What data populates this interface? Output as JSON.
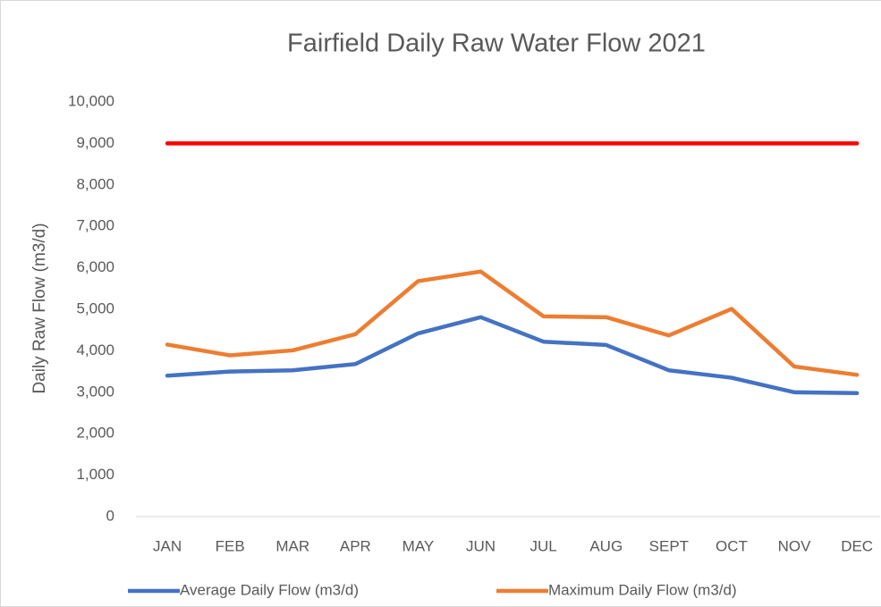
{
  "chart_data": {
    "type": "line",
    "title": "Fairfield Daily Raw Water Flow 2021",
    "y_label": "Daily Raw Flow (m3/d)",
    "categories": [
      "JAN",
      "FEB",
      "MAR",
      "APR",
      "MAY",
      "JUN",
      "JUL",
      "AUG",
      "SEPT",
      "OCT",
      "NOV",
      "DEC"
    ],
    "series": [
      {
        "name": "Average Daily Flow (m3/d)",
        "color": "#4472c4",
        "values": [
          3400,
          3500,
          3530,
          3680,
          4420,
          4810,
          4220,
          4140,
          3530,
          3350,
          3000,
          2980
        ]
      },
      {
        "name": "Maximum Daily Flow (m3/d)",
        "color": "#ed7d31",
        "values": [
          4150,
          3890,
          4010,
          4400,
          5680,
          5910,
          4830,
          4810,
          4370,
          5010,
          3620,
          3420
        ]
      },
      {
        "color": "#ff0000",
        "values": [
          9000,
          9000,
          9000,
          9000,
          9000,
          9000,
          9000,
          9000,
          9000,
          9000,
          9000,
          9000
        ]
      }
    ],
    "ylim": [
      0,
      10000
    ],
    "yticks": [
      0,
      {
        "value": 1000,
        "label": "1,000"
      },
      {
        "value": 2000,
        "label": "2,000"
      },
      {
        "value": 3000,
        "label": "3,000"
      },
      {
        "value": 4000,
        "label": "4,000"
      },
      {
        "value": 5000,
        "label": "5,000"
      },
      {
        "value": 6000,
        "label": "6,000"
      },
      {
        "value": 7000,
        "label": "7,000"
      },
      {
        "value": 8000,
        "label": "8,000"
      },
      {
        "value": 9000,
        "label": "9,000"
      },
      {
        "value": 10000,
        "label": "10,000"
      }
    ],
    "grid": false,
    "legend": "bottom"
  }
}
